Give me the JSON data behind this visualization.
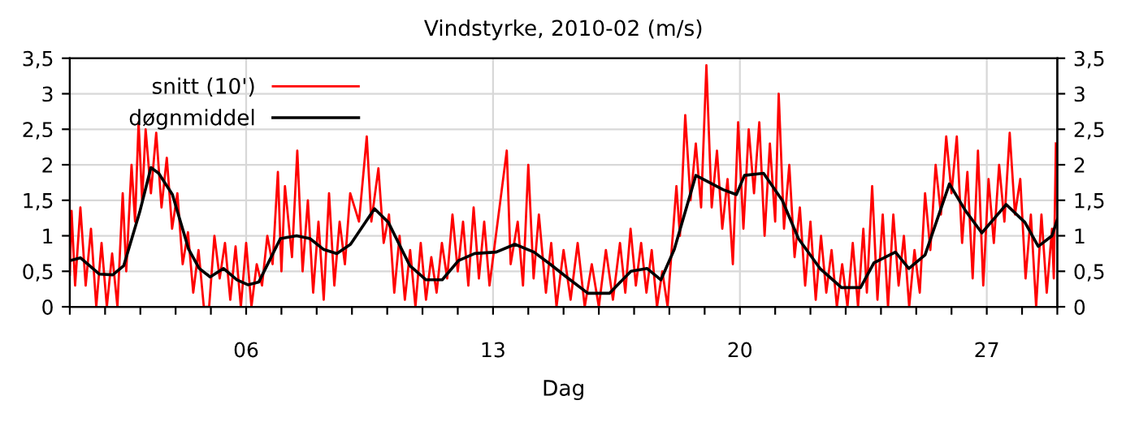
{
  "chart_data": {
    "type": "line",
    "title": "Vindstyrke, 2010-02 (m/s)",
    "xlabel": "Dag",
    "xlim": [
      1,
      29
    ],
    "xticks": [
      {
        "value": 1,
        "label": null
      },
      {
        "value": 2,
        "label": null
      },
      {
        "value": 3,
        "label": null
      },
      {
        "value": 4,
        "label": null
      },
      {
        "value": 5,
        "label": null
      },
      {
        "value": 6,
        "label": "06"
      },
      {
        "value": 7,
        "label": null
      },
      {
        "value": 8,
        "label": null
      },
      {
        "value": 9,
        "label": null
      },
      {
        "value": 10,
        "label": null
      },
      {
        "value": 11,
        "label": null
      },
      {
        "value": 12,
        "label": null
      },
      {
        "value": 13,
        "label": "13"
      },
      {
        "value": 14,
        "label": null
      },
      {
        "value": 15,
        "label": null
      },
      {
        "value": 16,
        "label": null
      },
      {
        "value": 17,
        "label": null
      },
      {
        "value": 18,
        "label": null
      },
      {
        "value": 19,
        "label": null
      },
      {
        "value": 20,
        "label": "20"
      },
      {
        "value": 21,
        "label": null
      },
      {
        "value": 22,
        "label": null
      },
      {
        "value": 23,
        "label": null
      },
      {
        "value": 24,
        "label": null
      },
      {
        "value": 25,
        "label": null
      },
      {
        "value": 26,
        "label": null
      },
      {
        "value": 27,
        "label": "27"
      },
      {
        "value": 28,
        "label": null
      },
      {
        "value": 29,
        "label": null
      }
    ],
    "ylim": [
      0,
      3.5
    ],
    "yticks": [
      0,
      {
        "value": 0.5,
        "label": "0,5"
      },
      1,
      {
        "value": 1.5,
        "label": "1,5"
      },
      2,
      {
        "value": 2.5,
        "label": "2,5"
      },
      3,
      {
        "value": 3.5,
        "label": "3,5"
      }
    ],
    "y2lim": [
      0,
      3.5
    ],
    "y2ticks": [
      0,
      {
        "value": 0.5,
        "label": "0,5"
      },
      1,
      {
        "value": 1.5,
        "label": "1,5"
      },
      2,
      {
        "value": 2.5,
        "label": "2,5"
      },
      3,
      {
        "value": 3.5,
        "label": "3,5"
      }
    ],
    "grid": true,
    "legend": "top left",
    "marker": "none",
    "line_style": "solid",
    "series": [
      {
        "name": "snitt (10')",
        "color": "#ff0000",
        "x": [
          1.0,
          1.05,
          1.15,
          1.3,
          1.45,
          1.6,
          1.75,
          1.9,
          2.05,
          2.2,
          2.35,
          2.5,
          2.6,
          2.75,
          2.85,
          2.95,
          3.05,
          3.15,
          3.3,
          3.45,
          3.6,
          3.75,
          3.9,
          4.05,
          4.2,
          4.35,
          4.5,
          4.65,
          4.8,
          4.95,
          5.1,
          5.25,
          5.4,
          5.55,
          5.7,
          5.85,
          6.0,
          6.15,
          6.3,
          6.45,
          6.6,
          6.75,
          6.9,
          7.0,
          7.1,
          7.3,
          7.45,
          7.6,
          7.75,
          7.9,
          8.05,
          8.2,
          8.35,
          8.5,
          8.65,
          8.8,
          8.95,
          9.2,
          9.42,
          9.55,
          9.75,
          9.9,
          10.05,
          10.2,
          10.35,
          10.5,
          10.65,
          10.8,
          10.95,
          11.1,
          11.25,
          11.4,
          11.55,
          11.7,
          11.85,
          12.0,
          12.15,
          12.3,
          12.45,
          12.6,
          12.75,
          12.9,
          13.39,
          13.5,
          13.7,
          13.85,
          14.0,
          14.15,
          14.3,
          14.5,
          14.65,
          14.8,
          15.0,
          15.2,
          15.4,
          15.6,
          15.8,
          16.0,
          16.2,
          16.4,
          16.6,
          16.75,
          16.9,
          17.05,
          17.2,
          17.35,
          17.5,
          17.65,
          17.8,
          17.95,
          18.05,
          18.2,
          18.3,
          18.45,
          18.6,
          18.75,
          18.9,
          19.05,
          19.2,
          19.35,
          19.5,
          19.65,
          19.8,
          19.95,
          20.1,
          20.25,
          20.4,
          20.55,
          20.7,
          20.85,
          21.0,
          21.1,
          21.25,
          21.4,
          21.55,
          21.7,
          21.85,
          22.0,
          22.15,
          22.3,
          22.45,
          22.6,
          22.75,
          22.9,
          23.05,
          23.2,
          23.35,
          23.5,
          23.6,
          23.75,
          23.9,
          24.05,
          24.2,
          24.35,
          24.5,
          24.65,
          24.8,
          24.95,
          25.1,
          25.25,
          25.4,
          25.55,
          25.7,
          25.85,
          26.0,
          26.15,
          26.3,
          26.45,
          26.6,
          26.75,
          26.9,
          27.05,
          27.2,
          27.35,
          27.5,
          27.65,
          27.8,
          27.95,
          28.1,
          28.25,
          28.4,
          28.55,
          28.7,
          28.85,
          28.9,
          28.96
        ],
        "values": [
          0.45,
          1.35,
          0.3,
          1.4,
          0.3,
          1.1,
          0.0,
          0.9,
          0.0,
          0.75,
          0.0,
          1.6,
          0.5,
          2.0,
          1.2,
          2.6,
          1.5,
          2.5,
          1.6,
          2.45,
          1.4,
          2.1,
          1.1,
          1.6,
          0.6,
          1.05,
          0.2,
          0.8,
          0.0,
          0.0,
          1.0,
          0.4,
          0.9,
          0.1,
          0.85,
          0.0,
          0.9,
          0.0,
          0.6,
          0.3,
          1.0,
          0.6,
          1.9,
          0.5,
          1.7,
          0.7,
          2.2,
          0.5,
          1.5,
          0.2,
          1.2,
          0.1,
          1.6,
          0.3,
          1.2,
          0.6,
          1.6,
          1.2,
          2.4,
          1.2,
          1.95,
          0.9,
          1.3,
          0.2,
          1.0,
          0.1,
          0.8,
          0.0,
          0.9,
          0.1,
          0.7,
          0.2,
          0.9,
          0.4,
          1.3,
          0.5,
          1.2,
          0.3,
          1.4,
          0.4,
          1.2,
          0.3,
          2.2,
          0.6,
          1.2,
          0.3,
          2.0,
          0.4,
          1.3,
          0.2,
          0.9,
          0.0,
          0.8,
          0.1,
          0.9,
          0.0,
          0.6,
          0.0,
          0.8,
          0.1,
          0.9,
          0.2,
          1.1,
          0.3,
          0.9,
          0.2,
          0.8,
          0.0,
          0.5,
          0.0,
          0.7,
          1.7,
          1.0,
          2.7,
          1.5,
          2.3,
          1.4,
          3.4,
          1.4,
          2.2,
          1.1,
          1.8,
          0.6,
          2.6,
          1.1,
          2.5,
          1.6,
          2.6,
          1.0,
          2.3,
          1.2,
          3.0,
          1.1,
          2.0,
          0.7,
          1.4,
          0.3,
          1.2,
          0.1,
          1.0,
          0.2,
          0.8,
          0.0,
          0.6,
          0.0,
          0.9,
          0.0,
          1.1,
          0.2,
          1.7,
          0.1,
          1.3,
          0.0,
          1.3,
          0.3,
          1.0,
          0.0,
          0.8,
          0.2,
          1.6,
          0.8,
          2.0,
          1.3,
          2.4,
          1.6,
          2.4,
          0.9,
          1.9,
          0.4,
          2.2,
          0.3,
          1.8,
          0.9,
          2.0,
          1.2,
          2.45,
          1.3,
          1.8,
          0.4,
          1.3,
          0.0,
          1.3,
          0.2,
          1.1,
          0.4,
          2.3
        ]
      },
      {
        "name": "døgnmiddel",
        "color": "#000000",
        "x": [
          1.0,
          1.3,
          1.84,
          2.22,
          2.53,
          2.99,
          3.3,
          3.52,
          3.91,
          4.37,
          4.67,
          4.98,
          5.36,
          5.74,
          6.05,
          6.36,
          6.66,
          6.97,
          7.43,
          7.81,
          8.19,
          8.57,
          8.96,
          9.64,
          10.03,
          10.64,
          11.1,
          11.56,
          12.02,
          12.48,
          13.09,
          13.62,
          14.16,
          14.62,
          15.08,
          15.69,
          16.3,
          16.91,
          17.37,
          17.76,
          18.14,
          18.75,
          19.06,
          19.52,
          19.9,
          20.13,
          20.67,
          21.2,
          21.66,
          22.27,
          22.88,
          23.42,
          23.8,
          24.41,
          24.79,
          25.25,
          25.94,
          26.4,
          26.86,
          27.55,
          28.08,
          28.46,
          28.85,
          29.0
        ],
        "values": [
          0.65,
          0.69,
          0.46,
          0.45,
          0.58,
          1.35,
          1.96,
          1.88,
          1.58,
          0.81,
          0.54,
          0.42,
          0.54,
          0.38,
          0.31,
          0.35,
          0.65,
          0.96,
          1.0,
          0.96,
          0.81,
          0.75,
          0.88,
          1.38,
          1.19,
          0.58,
          0.38,
          0.38,
          0.65,
          0.75,
          0.77,
          0.88,
          0.77,
          0.6,
          0.42,
          0.19,
          0.19,
          0.5,
          0.54,
          0.38,
          0.81,
          1.85,
          1.77,
          1.65,
          1.58,
          1.85,
          1.88,
          1.5,
          0.96,
          0.54,
          0.27,
          0.27,
          0.62,
          0.77,
          0.54,
          0.73,
          1.73,
          1.35,
          1.04,
          1.44,
          1.19,
          0.85,
          1.0,
          1.23
        ]
      }
    ]
  }
}
